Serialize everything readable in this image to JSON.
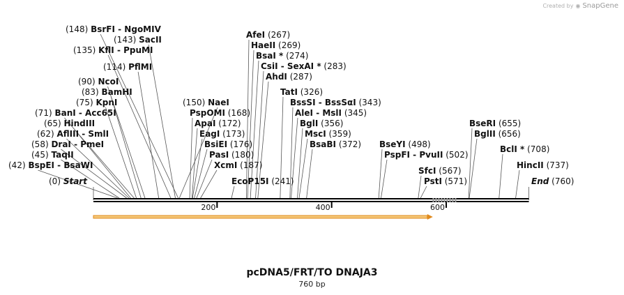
{
  "brand": {
    "text": "Created by",
    "logo": "SnapGene"
  },
  "plasmid": {
    "name": "pcDNA5/FRT/TO DNAJA3",
    "length_label": "760 bp",
    "length": 760
  },
  "sites": [
    {
      "pos": "(42)",
      "names": [
        "BspEI",
        "BsaWI"
      ],
      "coord": 42
    },
    {
      "pos": "(45)",
      "names": [
        "TaqII"
      ],
      "coord": 45
    },
    {
      "pos": "(58)",
      "names": [
        "DraI",
        "PmeI"
      ],
      "coord": 58
    },
    {
      "pos": "(62)",
      "names": [
        "AflIII",
        "SmlI"
      ],
      "coord": 62
    },
    {
      "pos": "(65)",
      "names": [
        "HindIII"
      ],
      "coord": 65
    },
    {
      "pos": "(71)",
      "names": [
        "BanI",
        "Acc65I"
      ],
      "coord": 71
    },
    {
      "pos": "(75)",
      "names": [
        "KpnI"
      ],
      "coord": 75
    },
    {
      "pos": "(83)",
      "names": [
        "BamHI"
      ],
      "coord": 83
    },
    {
      "pos": "(90)",
      "names": [
        "NcoI"
      ],
      "coord": 90
    },
    {
      "pos": "(114)",
      "names": [
        "PflMI"
      ],
      "coord": 114
    },
    {
      "pos": "(135)",
      "names": [
        "KflI",
        "PpuMI"
      ],
      "coord": 135
    },
    {
      "pos": "(143)",
      "names": [
        "SacII"
      ],
      "coord": 143
    },
    {
      "pos": "(148)",
      "names": [
        "BsrFI",
        "NgoMIV"
      ],
      "coord": 148
    },
    {
      "pos": "(150)",
      "names": [
        "NaeI"
      ],
      "coord": 150
    },
    {
      "pos": "(168)",
      "names": [
        "PspOMI"
      ],
      "coord": 168
    },
    {
      "pos": "(172)",
      "names": [
        "ApaI"
      ],
      "coord": 172
    },
    {
      "pos": "(173)",
      "names": [
        "EagI"
      ],
      "coord": 173
    },
    {
      "pos": "(176)",
      "names": [
        "BsiEI"
      ],
      "coord": 176
    },
    {
      "pos": "(180)",
      "names": [
        "PasI"
      ],
      "coord": 180
    },
    {
      "pos": "(187)",
      "names": [
        "XcmI"
      ],
      "coord": 187
    },
    {
      "pos": "(267)",
      "names": [
        "AfeI"
      ],
      "coord": 267
    },
    {
      "pos": "(269)",
      "names": [
        "HaeII"
      ],
      "coord": 269
    },
    {
      "pos": "(274)",
      "names": [
        "BsaI *"
      ],
      "coord": 274
    },
    {
      "pos": "(283)",
      "names": [
        "CsiI",
        "SexAI *"
      ],
      "coord": 283
    },
    {
      "pos": "(287)",
      "names": [
        "AhdI"
      ],
      "coord": 287
    },
    {
      "pos": "(241)",
      "names": [
        "EcoP15I"
      ],
      "coord": 241
    },
    {
      "pos": "(326)",
      "names": [
        "TatI"
      ],
      "coord": 326
    },
    {
      "pos": "(343)",
      "names": [
        "BssSI",
        "BssSαI"
      ],
      "coord": 343
    },
    {
      "pos": "(345)",
      "names": [
        "AleI",
        "MslI"
      ],
      "coord": 345
    },
    {
      "pos": "(356)",
      "names": [
        "BglI"
      ],
      "coord": 356
    },
    {
      "pos": "(359)",
      "names": [
        "MscI"
      ],
      "coord": 359
    },
    {
      "pos": "(372)",
      "names": [
        "BsaBI"
      ],
      "coord": 372
    },
    {
      "pos": "(498)",
      "names": [
        "BseYI"
      ],
      "coord": 498
    },
    {
      "pos": "(502)",
      "names": [
        "PspFI",
        "PvuII"
      ],
      "coord": 502
    },
    {
      "pos": "(567)",
      "names": [
        "SfcI"
      ],
      "coord": 567
    },
    {
      "pos": "(571)",
      "names": [
        "PstI"
      ],
      "coord": 571
    },
    {
      "pos": "(655)",
      "names": [
        "BseRI"
      ],
      "coord": 655
    },
    {
      "pos": "(656)",
      "names": [
        "BglII"
      ],
      "coord": 656
    },
    {
      "pos": "(708)",
      "names": [
        "BclI *"
      ],
      "coord": 708
    },
    {
      "pos": "(737)",
      "names": [
        "HincII"
      ],
      "coord": 737
    }
  ],
  "ends": {
    "start": {
      "pos": "(0)",
      "label": "Start"
    },
    "end": {
      "pos": "(760)",
      "label": "End"
    }
  },
  "ticks": [
    {
      "value": 200,
      "label": "200"
    },
    {
      "value": 400,
      "label": "400"
    },
    {
      "value": 600,
      "label": "600"
    }
  ],
  "feature": {
    "start": 0,
    "end": 590,
    "color": "#f5c878",
    "edge": "#e08a1e"
  },
  "colors": {
    "backbone": "#000000",
    "leader": "#555555"
  }
}
